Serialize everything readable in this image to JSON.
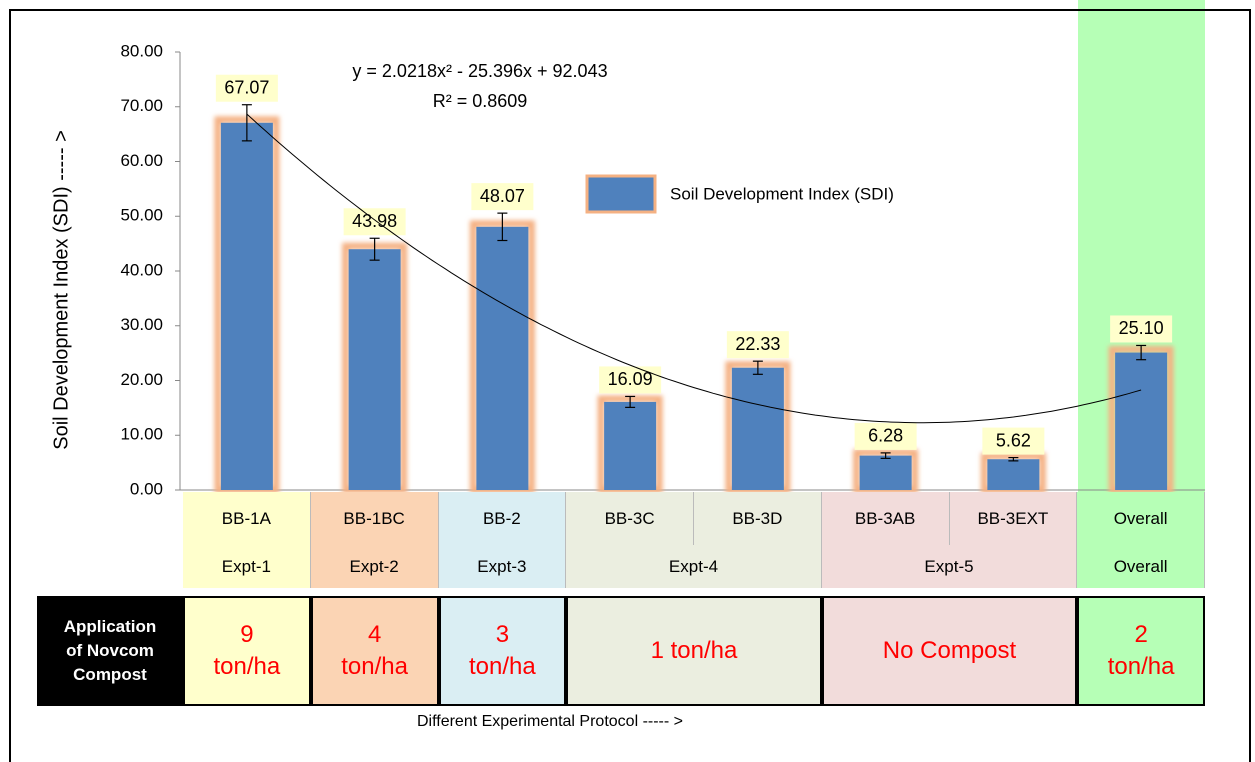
{
  "chart_data": {
    "type": "bar",
    "y_axis_label": "Soil Development Index  (SDI) ----- >",
    "x_axis_label": "Different Experimental Protocol ----- >",
    "categories": [
      "BB-1A",
      "BB-1BC",
      "BB-2",
      "BB-3C",
      "BB-3D",
      "BB-3AB",
      "BB-3EXT",
      "Overall"
    ],
    "groups": [
      "Expt-1",
      "Expt-2",
      "Expt-3",
      "Expt-4",
      "Expt-4",
      "Expt-5",
      "Expt-5",
      "Overall"
    ],
    "row_label": "Application of Novcom Compost",
    "application": [
      "9 ton/ha",
      "4 ton/ha",
      "3 ton/ha",
      "1 ton/ha",
      "1 ton/ha",
      "No Compost",
      "No Compost",
      "2 ton/ha"
    ],
    "cell_colors": [
      "#ffffcc",
      "#fbd4b4",
      "#daeef3",
      "#ebeee0",
      "#ebeee0",
      "#f2dcdb",
      "#f2dcdb",
      "#b6ffb6"
    ],
    "series": [
      {
        "name": "Soil Development Index (SDI)",
        "color": "#4f81bd",
        "values": [
          67.07,
          43.98,
          48.07,
          16.09,
          22.33,
          6.28,
          5.62,
          25.1
        ],
        "value_labels": [
          "67.07",
          "43.98",
          "48.07",
          "16.09",
          "22.33",
          "6.28",
          "5.62",
          "25.10"
        ],
        "errors": [
          3.3,
          2.0,
          2.5,
          1.0,
          1.2,
          0.5,
          0.3,
          1.3
        ]
      }
    ],
    "trendline": {
      "order": 2,
      "equation": "y = 2.0218x² - 25.396x + 92.043",
      "r_squared": "R² = 0.8609"
    },
    "ylim": [
      0,
      80
    ],
    "yticks": [
      {
        "value": 0,
        "label": "0.00"
      },
      {
        "value": 10,
        "label": "10.00"
      },
      {
        "value": 20,
        "label": "20.00"
      },
      {
        "value": 30,
        "label": "30.00"
      },
      {
        "value": 40,
        "label": "40.00"
      },
      {
        "value": 50,
        "label": "50.00"
      },
      {
        "value": 60,
        "label": "60.00"
      },
      {
        "value": 70,
        "label": "70.00"
      },
      {
        "value": 80,
        "label": "80.00"
      }
    ]
  }
}
